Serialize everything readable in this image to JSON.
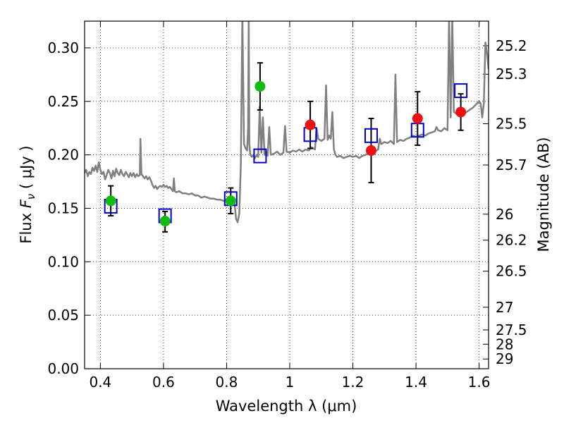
{
  "chart_data": {
    "type": "scatter",
    "xlabel": "Wavelength  λ (μm)",
    "ylabel": "Flux  F_ν  ( μJy )",
    "ylabel_right": "Magnitude (AB)",
    "xlim": [
      0.35,
      1.63
    ],
    "ylim": [
      0.0,
      0.325
    ],
    "x_ticks": [
      0.4,
      0.6,
      0.8,
      1.0,
      1.2,
      1.4,
      1.6
    ],
    "x_tick_labels": [
      "0.4",
      "0.6",
      "0.8",
      "1",
      "1.2",
      "1.4",
      "1.6"
    ],
    "y_ticks": [
      0.0,
      0.05,
      0.1,
      0.15,
      0.2,
      0.25,
      0.3
    ],
    "y_tick_labels": [
      "0.00",
      "0.05",
      "0.10",
      "0.15",
      "0.20",
      "0.25",
      "0.30"
    ],
    "right_ticks": [
      {
        "label": "25.2",
        "flux": 0.302
      },
      {
        "label": "25.3",
        "flux": 0.2754
      },
      {
        "label": "25.5",
        "flux": 0.2291
      },
      {
        "label": "25.7",
        "flux": 0.1905
      },
      {
        "label": "26",
        "flux": 0.1445
      },
      {
        "label": "26.2",
        "flux": 0.1202
      },
      {
        "label": "26.5",
        "flux": 0.0912
      },
      {
        "label": "27",
        "flux": 0.0575
      },
      {
        "label": "27.5",
        "flux": 0.0363
      },
      {
        "label": "28",
        "flux": 0.0229
      },
      {
        "label": "29",
        "flux": 0.0091
      }
    ],
    "grid": true,
    "colors": {
      "spectrum": "#808080",
      "green_points": "#11bb11",
      "red_points": "#ee1111",
      "model_squares": "#0000cc",
      "error_bars": "#000000"
    },
    "series": [
      {
        "type": "line",
        "points": [
          [
            0.35,
            0.183
          ],
          [
            0.355,
            0.186
          ],
          [
            0.36,
            0.18
          ],
          [
            0.365,
            0.184
          ],
          [
            0.37,
            0.182
          ],
          [
            0.375,
            0.188
          ],
          [
            0.38,
            0.185
          ],
          [
            0.385,
            0.19
          ],
          [
            0.39,
            0.184
          ],
          [
            0.395,
            0.193
          ],
          [
            0.4,
            0.186
          ],
          [
            0.405,
            0.182
          ],
          [
            0.41,
            0.184
          ],
          [
            0.415,
            0.177
          ],
          [
            0.42,
            0.181
          ],
          [
            0.425,
            0.186
          ],
          [
            0.43,
            0.183
          ],
          [
            0.435,
            0.178
          ],
          [
            0.44,
            0.185
          ],
          [
            0.445,
            0.18
          ],
          [
            0.45,
            0.187
          ],
          [
            0.455,
            0.183
          ],
          [
            0.46,
            0.181
          ],
          [
            0.465,
            0.186
          ],
          [
            0.47,
            0.182
          ],
          [
            0.475,
            0.18
          ],
          [
            0.48,
            0.184
          ],
          [
            0.485,
            0.182
          ],
          [
            0.49,
            0.179
          ],
          [
            0.495,
            0.183
          ],
          [
            0.5,
            0.18
          ],
          [
            0.505,
            0.183
          ],
          [
            0.51,
            0.179
          ],
          [
            0.515,
            0.182
          ],
          [
            0.52,
            0.18
          ],
          [
            0.525,
            0.181
          ],
          [
            0.527,
            0.215
          ],
          [
            0.53,
            0.182
          ],
          [
            0.535,
            0.18
          ],
          [
            0.54,
            0.178
          ],
          [
            0.545,
            0.18
          ],
          [
            0.55,
            0.177
          ],
          [
            0.555,
            0.179
          ],
          [
            0.56,
            0.176
          ],
          [
            0.565,
            0.172
          ],
          [
            0.57,
            0.169
          ],
          [
            0.575,
            0.171
          ],
          [
            0.58,
            0.168
          ],
          [
            0.585,
            0.17
          ],
          [
            0.59,
            0.171
          ],
          [
            0.595,
            0.17
          ],
          [
            0.6,
            0.172
          ],
          [
            0.605,
            0.17
          ],
          [
            0.61,
            0.171
          ],
          [
            0.615,
            0.169
          ],
          [
            0.62,
            0.17
          ],
          [
            0.625,
            0.168
          ],
          [
            0.63,
            0.166
          ],
          [
            0.633,
            0.178
          ],
          [
            0.636,
            0.166
          ],
          [
            0.64,
            0.165
          ],
          [
            0.65,
            0.166
          ],
          [
            0.66,
            0.164
          ],
          [
            0.67,
            0.164
          ],
          [
            0.68,
            0.163
          ],
          [
            0.69,
            0.164
          ],
          [
            0.7,
            0.162
          ],
          [
            0.71,
            0.162
          ],
          [
            0.72,
            0.16
          ],
          [
            0.73,
            0.161
          ],
          [
            0.74,
            0.16
          ],
          [
            0.75,
            0.159
          ],
          [
            0.76,
            0.159
          ],
          [
            0.77,
            0.158
          ],
          [
            0.78,
            0.158
          ],
          [
            0.79,
            0.157
          ],
          [
            0.8,
            0.158
          ],
          [
            0.81,
            0.158
          ],
          [
            0.82,
            0.157
          ],
          [
            0.825,
            0.155
          ],
          [
            0.83,
            0.14
          ],
          [
            0.835,
            0.137
          ],
          [
            0.84,
            0.145
          ],
          [
            0.845,
            0.19
          ],
          [
            0.85,
            0.33
          ],
          [
            0.855,
            0.21
          ],
          [
            0.86,
            0.206
          ],
          [
            0.865,
            0.204
          ],
          [
            0.868,
            0.225
          ],
          [
            0.87,
            0.33
          ],
          [
            0.872,
            0.21
          ],
          [
            0.875,
            0.2
          ],
          [
            0.88,
            0.198
          ],
          [
            0.885,
            0.2
          ],
          [
            0.89,
            0.197
          ],
          [
            0.895,
            0.2
          ],
          [
            0.9,
            0.198
          ],
          [
            0.905,
            0.245
          ],
          [
            0.91,
            0.202
          ],
          [
            0.915,
            0.235
          ],
          [
            0.92,
            0.2
          ],
          [
            0.925,
            0.203
          ],
          [
            0.93,
            0.199
          ],
          [
            0.935,
            0.226
          ],
          [
            0.94,
            0.2
          ],
          [
            0.95,
            0.201
          ],
          [
            0.96,
            0.203
          ],
          [
            0.97,
            0.2
          ],
          [
            0.98,
            0.202
          ],
          [
            0.985,
            0.227
          ],
          [
            0.99,
            0.203
          ],
          [
            1.0,
            0.202
          ],
          [
            1.01,
            0.204
          ],
          [
            1.02,
            0.203
          ],
          [
            1.03,
            0.205
          ],
          [
            1.04,
            0.203
          ],
          [
            1.05,
            0.205
          ],
          [
            1.06,
            0.204
          ],
          [
            1.07,
            0.207
          ],
          [
            1.08,
            0.205
          ],
          [
            1.085,
            0.225
          ],
          [
            1.09,
            0.215
          ],
          [
            1.1,
            0.213
          ],
          [
            1.11,
            0.215
          ],
          [
            1.115,
            0.265
          ],
          [
            1.12,
            0.214
          ],
          [
            1.125,
            0.218
          ],
          [
            1.13,
            0.215
          ],
          [
            1.135,
            0.24
          ],
          [
            1.14,
            0.205
          ],
          [
            1.145,
            0.2
          ],
          [
            1.15,
            0.198
          ],
          [
            1.16,
            0.199
          ],
          [
            1.17,
            0.197
          ],
          [
            1.18,
            0.198
          ],
          [
            1.19,
            0.199
          ],
          [
            1.2,
            0.198
          ],
          [
            1.21,
            0.199
          ],
          [
            1.22,
            0.197
          ],
          [
            1.23,
            0.199
          ],
          [
            1.24,
            0.2
          ],
          [
            1.25,
            0.201
          ],
          [
            1.26,
            0.2
          ],
          [
            1.27,
            0.203
          ],
          [
            1.28,
            0.205
          ],
          [
            1.285,
            0.215
          ],
          [
            1.29,
            0.21
          ],
          [
            1.3,
            0.212
          ],
          [
            1.31,
            0.211
          ],
          [
            1.32,
            0.213
          ],
          [
            1.33,
            0.21
          ],
          [
            1.335,
            0.275
          ],
          [
            1.34,
            0.212
          ],
          [
            1.35,
            0.214
          ],
          [
            1.36,
            0.213
          ],
          [
            1.37,
            0.215
          ],
          [
            1.38,
            0.216
          ],
          [
            1.39,
            0.218
          ],
          [
            1.4,
            0.217
          ],
          [
            1.41,
            0.218
          ],
          [
            1.42,
            0.219
          ],
          [
            1.43,
            0.218
          ],
          [
            1.44,
            0.22
          ],
          [
            1.45,
            0.221
          ],
          [
            1.46,
            0.222
          ],
          [
            1.465,
            0.226
          ],
          [
            1.47,
            0.223
          ],
          [
            1.48,
            0.222
          ],
          [
            1.49,
            0.225
          ],
          [
            1.5,
            0.223
          ],
          [
            1.505,
            0.33
          ],
          [
            1.51,
            0.235
          ],
          [
            1.515,
            0.33
          ],
          [
            1.52,
            0.24
          ],
          [
            1.53,
            0.238
          ],
          [
            1.54,
            0.237
          ],
          [
            1.55,
            0.238
          ],
          [
            1.56,
            0.24
          ],
          [
            1.57,
            0.242
          ],
          [
            1.58,
            0.244
          ],
          [
            1.59,
            0.247
          ],
          [
            1.6,
            0.25
          ],
          [
            1.605,
            0.248
          ],
          [
            1.61,
            0.235
          ],
          [
            1.615,
            0.248
          ],
          [
            1.62,
            0.305
          ],
          [
            1.625,
            0.295
          ],
          [
            1.63,
            0.28
          ]
        ]
      },
      {
        "type": "errorbar-points",
        "points": [
          {
            "x": 0.433,
            "y": 0.157,
            "err_low": 0.014,
            "err_high": 0.014,
            "color": "green"
          },
          {
            "x": 0.605,
            "y": 0.138,
            "err_low": 0.01,
            "err_high": 0.009,
            "color": "green"
          },
          {
            "x": 0.813,
            "y": 0.157,
            "err_low": 0.012,
            "err_high": 0.012,
            "color": "green"
          },
          {
            "x": 0.906,
            "y": 0.264,
            "err_low": 0.022,
            "err_high": 0.022,
            "color": "green"
          },
          {
            "x": 1.065,
            "y": 0.228,
            "err_low": 0.022,
            "err_high": 0.022,
            "color": "red"
          },
          {
            "x": 1.258,
            "y": 0.204,
            "err_low": 0.03,
            "err_high": 0.03,
            "color": "red"
          },
          {
            "x": 1.405,
            "y": 0.234,
            "err_low": 0.025,
            "err_high": 0.025,
            "color": "red"
          },
          {
            "x": 1.542,
            "y": 0.24,
            "err_low": 0.017,
            "err_high": 0.017,
            "color": "red"
          }
        ]
      },
      {
        "type": "model-squares",
        "points": [
          [
            0.433,
            0.152
          ],
          [
            0.605,
            0.143
          ],
          [
            0.813,
            0.159
          ],
          [
            0.906,
            0.199
          ],
          [
            1.065,
            0.219
          ],
          [
            1.258,
            0.218
          ],
          [
            1.405,
            0.223
          ],
          [
            1.542,
            0.26
          ]
        ]
      }
    ]
  }
}
